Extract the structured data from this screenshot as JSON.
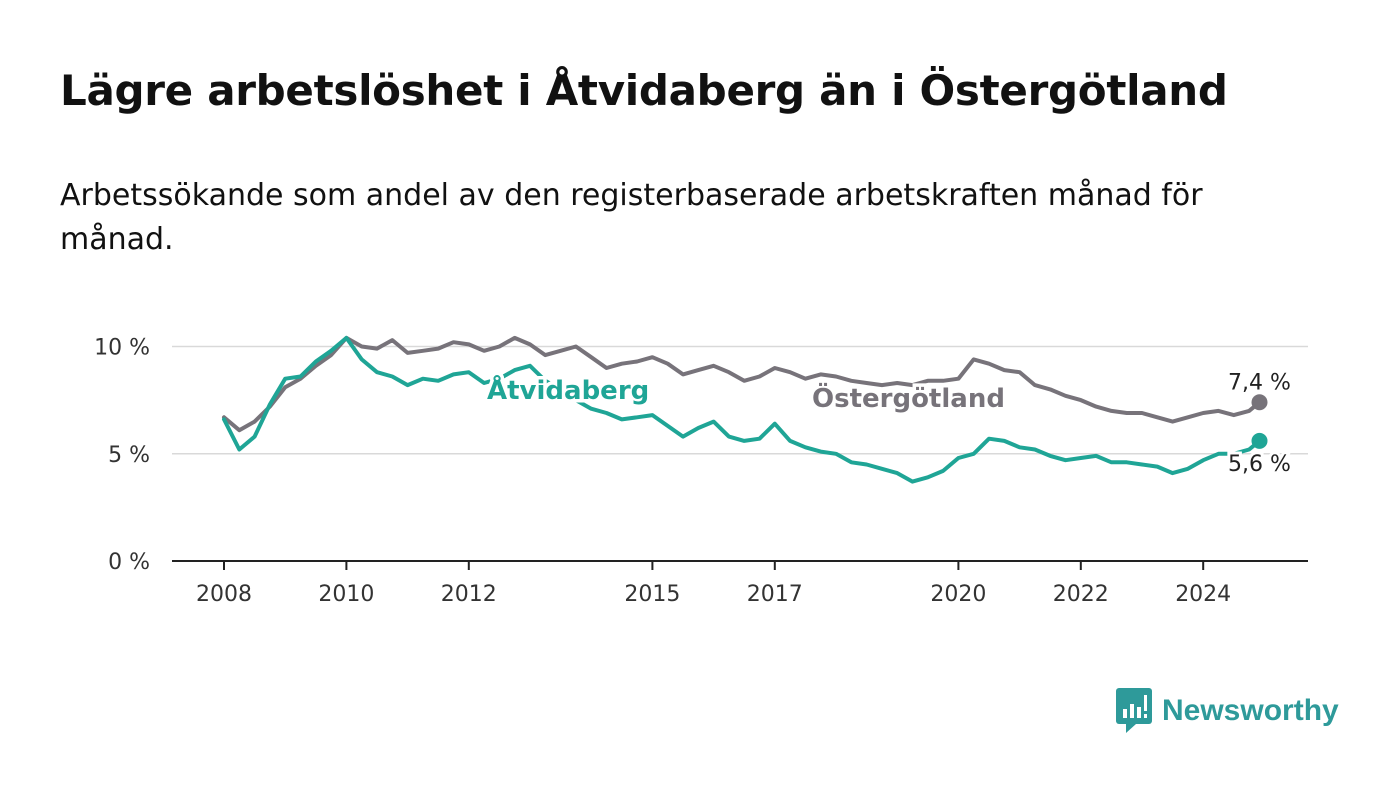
{
  "title": "Lägre arbetslöshet i Åtvidaberg än i Östergötland",
  "subtitle": "Arbetssökande som andel av den registerbaserade arbetskraften månad för månad.",
  "brand": {
    "name": "Newsworthy",
    "icon": "newsworthy-logo-icon",
    "color": "#2e9a9a"
  },
  "chart_data": {
    "type": "line",
    "x_ticks": [
      "2008",
      "2010",
      "2012",
      "2015",
      "2017",
      "2020",
      "2022",
      "2024"
    ],
    "y_ticks": [
      "0 %",
      "5 %",
      "10 %"
    ],
    "ylim": [
      0,
      10
    ],
    "grid": "horizontal",
    "series": [
      {
        "name": "Östergötland",
        "color": "#77737a",
        "end_label": "7,4 %",
        "x": [
          2008.0,
          2008.25,
          2008.5,
          2008.75,
          2009.0,
          2009.25,
          2009.5,
          2009.75,
          2010.0,
          2010.25,
          2010.5,
          2010.75,
          2011.0,
          2011.25,
          2011.5,
          2011.75,
          2012.0,
          2012.25,
          2012.5,
          2012.75,
          2013.0,
          2013.25,
          2013.5,
          2013.75,
          2014.0,
          2014.25,
          2014.5,
          2014.75,
          2015.0,
          2015.25,
          2015.5,
          2015.75,
          2016.0,
          2016.25,
          2016.5,
          2016.75,
          2017.0,
          2017.25,
          2017.5,
          2017.75,
          2018.0,
          2018.25,
          2018.5,
          2018.75,
          2019.0,
          2019.25,
          2019.5,
          2019.75,
          2020.0,
          2020.25,
          2020.5,
          2020.75,
          2021.0,
          2021.25,
          2021.5,
          2021.75,
          2022.0,
          2022.25,
          2022.5,
          2022.75,
          2023.0,
          2023.25,
          2023.5,
          2023.75,
          2024.0,
          2024.25,
          2024.5,
          2024.75,
          2024.92
        ],
        "values": [
          6.7,
          6.1,
          6.5,
          7.2,
          8.1,
          8.5,
          9.1,
          9.6,
          10.4,
          10.0,
          9.9,
          10.3,
          9.7,
          9.8,
          9.9,
          10.2,
          10.1,
          9.8,
          10.0,
          10.4,
          10.1,
          9.6,
          9.8,
          10.0,
          9.5,
          9.0,
          9.2,
          9.3,
          9.5,
          9.2,
          8.7,
          8.9,
          9.1,
          8.8,
          8.4,
          8.6,
          9.0,
          8.8,
          8.5,
          8.7,
          8.6,
          8.4,
          8.3,
          8.2,
          8.3,
          8.2,
          8.4,
          8.4,
          8.5,
          9.4,
          9.2,
          8.9,
          8.8,
          8.2,
          8.0,
          7.7,
          7.5,
          7.2,
          7.0,
          6.9,
          6.9,
          6.7,
          6.5,
          6.7,
          6.9,
          7.0,
          6.8,
          7.0,
          7.4
        ]
      },
      {
        "name": "Åtvidaberg",
        "color": "#1fa596",
        "end_label": "5,6 %",
        "x": [
          2008.0,
          2008.25,
          2008.5,
          2008.75,
          2009.0,
          2009.25,
          2009.5,
          2009.75,
          2010.0,
          2010.25,
          2010.5,
          2010.75,
          2011.0,
          2011.25,
          2011.5,
          2011.75,
          2012.0,
          2012.25,
          2012.5,
          2012.75,
          2013.0,
          2013.25,
          2013.5,
          2013.75,
          2014.0,
          2014.25,
          2014.5,
          2014.75,
          2015.0,
          2015.25,
          2015.5,
          2015.75,
          2016.0,
          2016.25,
          2016.5,
          2016.75,
          2017.0,
          2017.25,
          2017.5,
          2017.75,
          2018.0,
          2018.25,
          2018.5,
          2018.75,
          2019.0,
          2019.25,
          2019.5,
          2019.75,
          2020.0,
          2020.25,
          2020.5,
          2020.75,
          2021.0,
          2021.25,
          2021.5,
          2021.75,
          2022.0,
          2022.25,
          2022.5,
          2022.75,
          2023.0,
          2023.25,
          2023.5,
          2023.75,
          2024.0,
          2024.25,
          2024.5,
          2024.75,
          2024.92
        ],
        "values": [
          6.6,
          5.2,
          5.8,
          7.3,
          8.5,
          8.6,
          9.3,
          9.8,
          10.4,
          9.4,
          8.8,
          8.6,
          8.2,
          8.5,
          8.4,
          8.7,
          8.8,
          8.3,
          8.5,
          8.9,
          9.1,
          8.4,
          8.0,
          7.5,
          7.1,
          6.9,
          6.6,
          6.7,
          6.8,
          6.3,
          5.8,
          6.2,
          6.5,
          5.8,
          5.6,
          5.7,
          6.4,
          5.6,
          5.3,
          5.1,
          5.0,
          4.6,
          4.5,
          4.3,
          4.1,
          3.7,
          3.9,
          4.2,
          4.8,
          5.0,
          5.7,
          5.6,
          5.3,
          5.2,
          4.9,
          4.7,
          4.8,
          4.9,
          4.6,
          4.6,
          4.5,
          4.4,
          4.1,
          4.3,
          4.7,
          5.0,
          5.0,
          5.2,
          5.6
        ]
      }
    ]
  }
}
